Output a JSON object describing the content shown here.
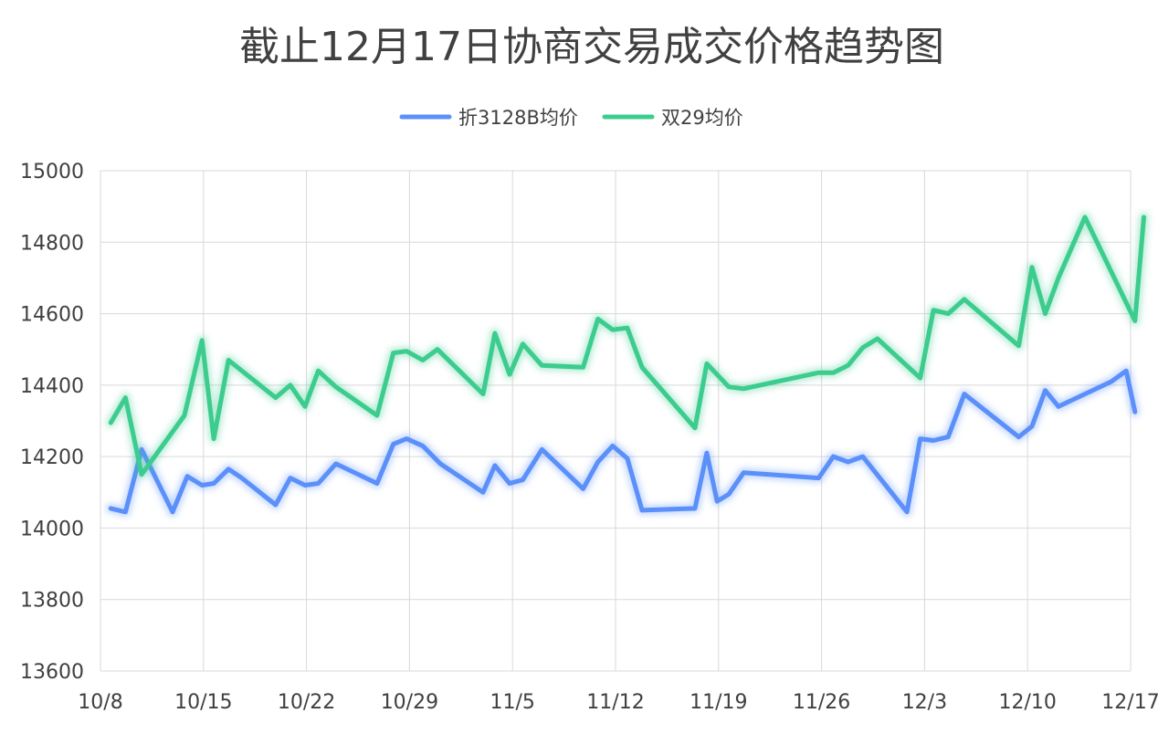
{
  "title": "截止12月17日协商交易成交价格趋势图",
  "chart_data": {
    "type": "line",
    "title": "截止12月17日协商交易成交价格趋势图",
    "legend_position": "top-center",
    "grid": true,
    "ylim": [
      13600,
      15000
    ],
    "yticks": [
      "15000",
      "14800",
      "14600",
      "14400",
      "14200",
      "14000",
      "13800",
      "13600"
    ],
    "xlim": [
      0,
      70
    ],
    "xticks": [
      {
        "label": "10/8",
        "x": 0
      },
      {
        "label": "10/15",
        "x": 7
      },
      {
        "label": "10/22",
        "x": 14
      },
      {
        "label": "10/29",
        "x": 21
      },
      {
        "label": "11/5",
        "x": 28
      },
      {
        "label": "11/12",
        "x": 35
      },
      {
        "label": "11/19",
        "x": 42
      },
      {
        "label": "11/26",
        "x": 49
      },
      {
        "label": "12/3",
        "x": 56
      },
      {
        "label": "12/10",
        "x": 63
      },
      {
        "label": "12/17",
        "x": 70
      }
    ],
    "series": [
      {
        "name": "折3128B均价",
        "color": "#5b8ff9",
        "x": [
          0.7,
          1.7,
          2.8,
          4.9,
          5.9,
          6.9,
          7.7,
          8.7,
          9.6,
          11.9,
          12.9,
          13.9,
          14.8,
          16.0,
          18.8,
          19.9,
          20.8,
          21.9,
          23.1,
          26.0,
          26.8,
          27.8,
          28.7,
          30.0,
          32.8,
          33.8,
          34.8,
          35.8,
          36.8,
          40.4,
          41.2,
          41.9,
          42.7,
          43.7,
          48.8,
          49.8,
          50.8,
          51.8,
          54.8,
          55.7,
          56.6,
          57.6,
          58.7,
          62.4,
          63.3,
          64.2,
          65.1,
          68.7,
          69.7,
          70.3
        ],
        "values": [
          14055,
          14045,
          14220,
          14045,
          14145,
          14120,
          14125,
          14165,
          14140,
          14065,
          14140,
          14120,
          14125,
          14180,
          14125,
          14235,
          14250,
          14230,
          14180,
          14100,
          14175,
          14125,
          14135,
          14220,
          14110,
          14185,
          14230,
          14195,
          14050,
          14055,
          14210,
          14075,
          14095,
          14155,
          14140,
          14200,
          14185,
          14200,
          14045,
          14250,
          14245,
          14255,
          14375,
          14255,
          14285,
          14385,
          14340,
          14410,
          14440,
          14325
        ]
      },
      {
        "name": "双29均价",
        "color": "#3ccc8e",
        "x": [
          0.7,
          1.7,
          2.8,
          5.7,
          6.9,
          7.7,
          8.7,
          11.9,
          12.9,
          13.9,
          14.8,
          16.0,
          18.8,
          19.9,
          20.8,
          21.9,
          22.9,
          26.0,
          26.8,
          27.8,
          28.7,
          30.0,
          32.8,
          33.8,
          34.8,
          35.8,
          36.8,
          40.4,
          41.2,
          42.7,
          43.7,
          48.8,
          49.8,
          50.8,
          51.8,
          52.8,
          55.7,
          56.6,
          57.6,
          58.7,
          62.4,
          63.3,
          64.2,
          65.1,
          66.9,
          70.3,
          70.9
        ],
        "values": [
          14295,
          14365,
          14150,
          14315,
          14525,
          14250,
          14470,
          14365,
          14400,
          14340,
          14440,
          14395,
          14315,
          14490,
          14495,
          14470,
          14500,
          14375,
          14545,
          14430,
          14515,
          14455,
          14450,
          14585,
          14555,
          14560,
          14450,
          14280,
          14460,
          14395,
          14390,
          14435,
          14435,
          14455,
          14505,
          14530,
          14420,
          14610,
          14600,
          14640,
          14510,
          14730,
          14600,
          14700,
          14870,
          14580,
          14870
        ]
      }
    ]
  }
}
